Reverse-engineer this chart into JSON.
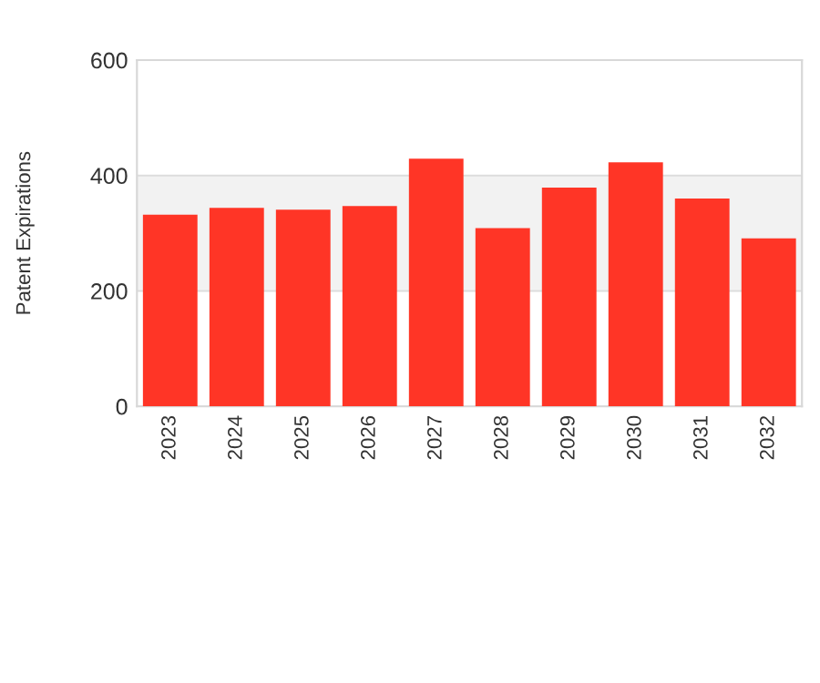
{
  "chart_data": {
    "type": "bar",
    "ylabel": "Patent Expirations",
    "categories": [
      "2023",
      "2024",
      "2025",
      "2026",
      "2027",
      "2028",
      "2029",
      "2030",
      "2031",
      "2032"
    ],
    "values": [
      332,
      344,
      341,
      347,
      429,
      309,
      379,
      423,
      360,
      291
    ],
    "color": "#ff3526",
    "ylim": [
      0,
      600
    ],
    "yticks": [
      0,
      200,
      400,
      600
    ],
    "grid": "y",
    "bands": [
      {
        "axis": "y",
        "from": 200,
        "to": 400,
        "color": "#f2f2f2"
      }
    ]
  }
}
